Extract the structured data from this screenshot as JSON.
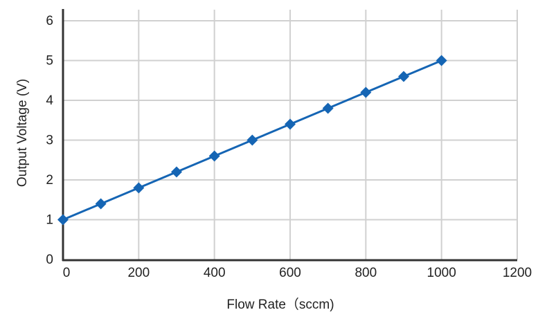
{
  "chart_data": {
    "type": "line",
    "title": "",
    "xlabel": "Flow Rate（sccm)",
    "ylabel": "Output Voltage (V)",
    "xlim": [
      0,
      1200
    ],
    "ylim": [
      0,
      6
    ],
    "xticks": [
      0,
      200,
      400,
      600,
      800,
      1000,
      1200
    ],
    "yticks": [
      0,
      1,
      2,
      3,
      4,
      5,
      6
    ],
    "grid": true,
    "marker": "diamond",
    "series": [
      {
        "color": "#1565b4",
        "x": [
          0,
          100,
          200,
          300,
          400,
          500,
          600,
          700,
          800,
          900,
          1000
        ],
        "y": [
          1.0,
          1.4,
          1.8,
          2.2,
          2.6,
          3.0,
          3.4,
          3.8,
          4.2,
          4.6,
          5.0
        ]
      }
    ],
    "colors": {
      "grid": "#d0d0d0",
      "axis": "#333333",
      "series": "#1565b4"
    }
  }
}
